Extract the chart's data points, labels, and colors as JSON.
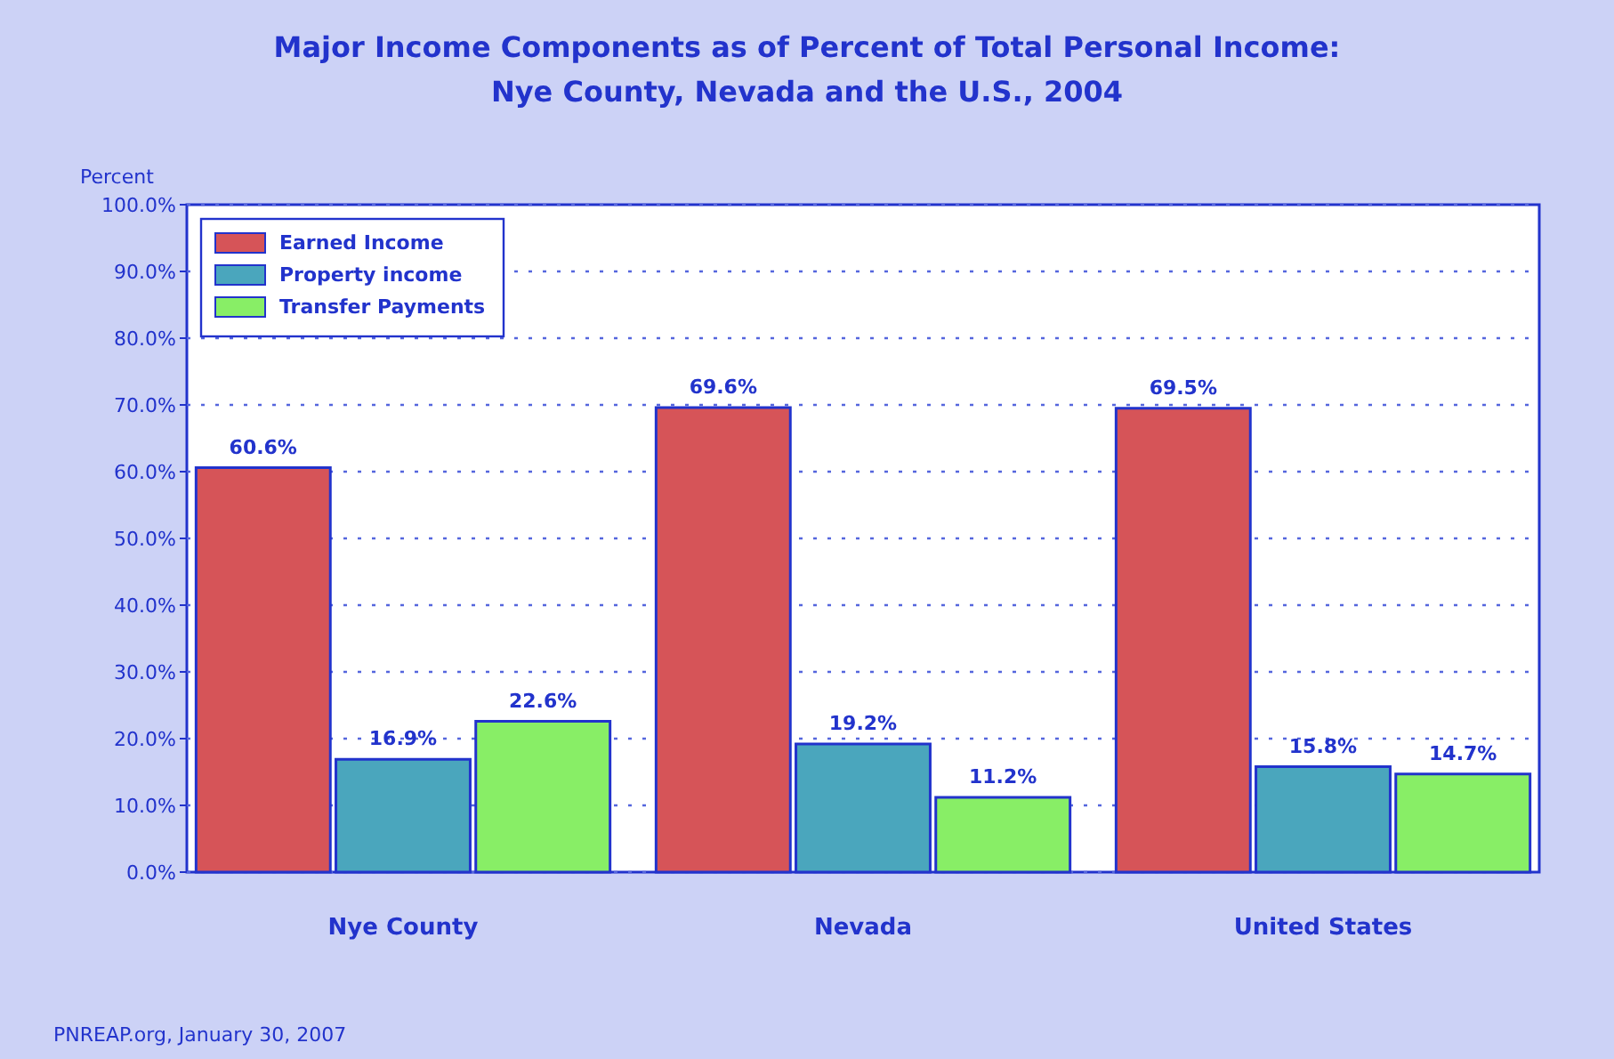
{
  "chart_data": {
    "type": "bar",
    "title": "Major Income Components as of Percent of Total Personal Income:\nNye County, Nevada and the U.S., 2004",
    "ylabel": "Percent",
    "categories": [
      "Nye County",
      "Nevada",
      "United States"
    ],
    "series": [
      {
        "name": "Earned Income",
        "color": "#d65458",
        "values": [
          60.6,
          69.6,
          69.5
        ],
        "value_labels": [
          "60.6%",
          "69.6%",
          "69.5%"
        ]
      },
      {
        "name": "Property income",
        "color": "#4aa6bd",
        "values": [
          16.9,
          19.2,
          15.8
        ],
        "value_labels": [
          "16.9%",
          "19.2%",
          "15.8%"
        ]
      },
      {
        "name": "Transfer Payments",
        "color": "#88ee66",
        "values": [
          22.6,
          11.2,
          14.7
        ],
        "value_labels": [
          "22.6%",
          "11.2%",
          "14.7%"
        ]
      }
    ],
    "ylim": [
      0,
      100
    ],
    "yticks": [
      {
        "value": 0,
        "label": "0.0%"
      },
      {
        "value": 10,
        "label": "10.0%"
      },
      {
        "value": 20,
        "label": "20.0%"
      },
      {
        "value": 30,
        "label": "30.0%"
      },
      {
        "value": 40,
        "label": "40.0%"
      },
      {
        "value": 50,
        "label": "50.0%"
      },
      {
        "value": 60,
        "label": "60.0%"
      },
      {
        "value": 70,
        "label": "70.0%"
      },
      {
        "value": 80,
        "label": "80.0%"
      },
      {
        "value": 90,
        "label": "90.0%"
      },
      {
        "value": 100,
        "label": "100.0%"
      }
    ],
    "grid": "y",
    "legend": "top left",
    "annotations": [
      "PNREAP.org, January 30, 2007"
    ]
  }
}
